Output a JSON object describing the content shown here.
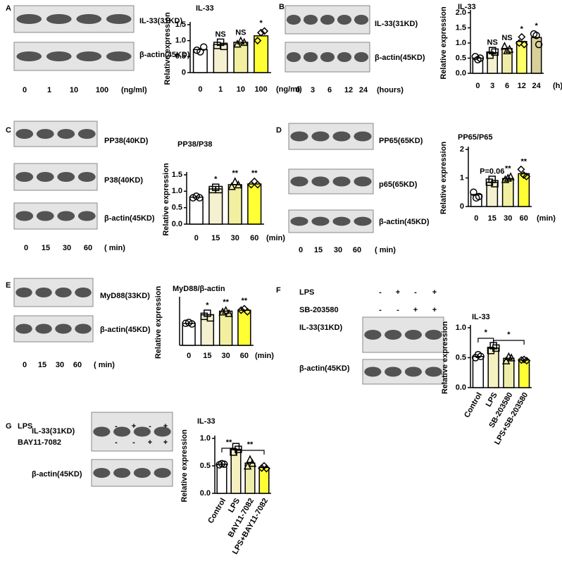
{
  "panels": [
    {
      "label": "A",
      "blots": [
        {
          "label": "IL-33(31KD)"
        },
        {
          "label": "β-actin(45KD)"
        }
      ],
      "lanes": [
        "0",
        "1",
        "10",
        "100"
      ],
      "lane_unit": "(ng/ml)"
    },
    {
      "label": "B",
      "blots": [
        {
          "label": "IL-33(31KD)"
        },
        {
          "label": "β-actin(45KD)"
        }
      ],
      "lanes": [
        "0",
        "3",
        "6",
        "12",
        "24"
      ],
      "lane_unit": "(hours)"
    },
    {
      "label": "C",
      "blots": [
        {
          "label": "PP38(40KD)"
        },
        {
          "label": "P38(40KD)"
        },
        {
          "label": "β-actin(45KD)"
        }
      ],
      "lanes": [
        "0",
        "15",
        "30",
        "60"
      ],
      "lane_unit": "( min)"
    },
    {
      "label": "D",
      "blots": [
        {
          "label": "PP65(65KD)"
        },
        {
          "label": "p65(65KD)"
        },
        {
          "label": "β-actin(45KD)"
        }
      ],
      "lanes": [
        "0",
        "15",
        "30",
        "60"
      ],
      "lane_unit": "( min)"
    },
    {
      "label": "E",
      "blots": [
        {
          "label": "MyD88(33KD)"
        },
        {
          "label": "β-actin(45KD)"
        }
      ],
      "lanes": [
        "0",
        "15",
        "30",
        "60"
      ],
      "lane_unit": "( min)"
    },
    {
      "label": "F",
      "blots": [
        {
          "label": "IL-33(31KD)"
        },
        {
          "label": "β-actin(45KD)"
        }
      ],
      "treatments": [
        {
          "name": "LPS",
          "signs": [
            "-",
            "+",
            "-",
            "+"
          ]
        },
        {
          "name": "SB-203580",
          "signs": [
            "-",
            "-",
            "+",
            "+"
          ]
        }
      ]
    },
    {
      "label": "G",
      "blots": [
        {
          "label": "IL-33(31KD)"
        },
        {
          "label": "β-actin(45KD)"
        }
      ],
      "treatments": [
        {
          "name": "LPS",
          "signs": [
            "-",
            "+",
            "-",
            "+"
          ]
        },
        {
          "name": "BAY11-7082",
          "signs": [
            "-",
            "-",
            "+",
            "+"
          ]
        }
      ]
    }
  ],
  "chart_data": [
    {
      "type": "bar",
      "title": "IL-33",
      "ylabel": "Relative expression",
      "categories": [
        "0",
        "1",
        "10",
        "100"
      ],
      "x_unit": "(ng/ml)",
      "values": [
        0.72,
        0.88,
        0.95,
        1.15
      ],
      "points": [
        [
          0.7,
          0.65,
          0.8
        ],
        [
          0.85,
          0.95,
          0.82
        ],
        [
          0.9,
          1.0,
          0.95
        ],
        [
          1.0,
          1.25,
          1.3
        ]
      ],
      "colors": [
        "#ffffff",
        "#f5f0d0",
        "#f2f0a0",
        "#ffff33"
      ],
      "annotations": [
        null,
        "NS",
        "NS",
        "*"
      ],
      "ylim": [
        0,
        1.5
      ],
      "yticks": [
        0,
        0.5,
        {
          "value": 1,
          "label": "1.0"
        },
        1.5
      ]
    },
    {
      "type": "bar",
      "title": "IL-33",
      "ylabel": "Relative expression",
      "categories": [
        "0",
        "3",
        "6",
        "12",
        "24"
      ],
      "x_unit": "(h)",
      "values": [
        0.5,
        0.68,
        0.82,
        1.05,
        1.18
      ],
      "points": [
        [
          0.55,
          0.45,
          0.5
        ],
        [
          0.6,
          0.75,
          0.7
        ],
        [
          0.9,
          0.75,
          0.8
        ],
        [
          1.0,
          1.2,
          0.95
        ],
        [
          1.3,
          1.25,
          0.95
        ]
      ],
      "colors": [
        "#ffffff",
        "#f5f0d0",
        "#f0eca8",
        "#ffff66",
        "#d9cf9a"
      ],
      "annotations": [
        null,
        "NS",
        "NS",
        "*",
        "*"
      ],
      "ylim": [
        0,
        2
      ],
      "yticks": [
        {
          "value": 0,
          "label": "0.0"
        },
        0.5,
        {
          "value": 1,
          "label": "1.0"
        },
        1.5,
        {
          "value": 2,
          "label": "2.0"
        }
      ]
    },
    {
      "type": "bar",
      "title": "PP38/P38",
      "ylabel": "Relative expression",
      "categories": [
        "0",
        "15",
        "30",
        "60"
      ],
      "x_unit": "(min)",
      "values": [
        0.82,
        1.07,
        1.2,
        1.22
      ],
      "points": [
        [
          0.8,
          0.85,
          0.8
        ],
        [
          1.05,
          1.12,
          1.05
        ],
        [
          1.15,
          1.3,
          1.2
        ],
        [
          1.2,
          1.3,
          1.2
        ]
      ],
      "colors": [
        "#ffffff",
        "#f5f0d0",
        "#f2f0a0",
        "#ffff33"
      ],
      "annotations": [
        null,
        "*",
        "**",
        "**"
      ],
      "ylim": [
        0,
        1.5
      ],
      "yticks": [
        {
          "value": 0,
          "label": "0.0"
        },
        0.5,
        {
          "value": 1,
          "label": "1.0"
        },
        1.5
      ]
    },
    {
      "type": "bar",
      "title": "PP65/P65",
      "ylabel": "Relative expression",
      "categories": [
        "0",
        "15",
        "30",
        "60"
      ],
      "x_unit": "(min)",
      "values": [
        0.42,
        0.85,
        0.98,
        1.15
      ],
      "points": [
        [
          0.5,
          0.3,
          0.35
        ],
        [
          0.85,
          0.95,
          0.8
        ],
        [
          0.95,
          1.0,
          1.05
        ],
        [
          1.3,
          1.1,
          1.05
        ]
      ],
      "colors": [
        "#ffffff",
        "#f5f0d0",
        "#f2f0a0",
        "#ffff33"
      ],
      "annotations": [
        null,
        "P=0.06",
        "**",
        "**"
      ],
      "ylim": [
        0,
        2
      ],
      "yticks": [
        0,
        1,
        2
      ]
    },
    {
      "type": "bar",
      "title": "MyD88/β-actin",
      "ylabel": "Relative expression",
      "categories": [
        "0",
        "15",
        "30",
        "60"
      ],
      "x_unit": "(min)",
      "values": [
        0.72,
        1.0,
        1.12,
        1.15
      ],
      "points": [
        [
          0.72,
          0.75,
          0.7
        ],
        [
          0.95,
          1.05,
          0.9
        ],
        [
          1.1,
          1.15,
          1.05
        ],
        [
          1.15,
          1.2,
          1.1
        ]
      ],
      "colors": [
        "#ffffff",
        "#f5f0d0",
        "#f2f0a0",
        "#ffff33"
      ],
      "annotations": [
        null,
        "*",
        "**",
        "**"
      ],
      "ylim": [
        0,
        1.5
      ]
    },
    {
      "type": "bar",
      "title": "IL-33",
      "ylabel": "Relative expression",
      "categories": [
        "Control",
        "LPS",
        "SB-203580",
        "LPS+SB-203580"
      ],
      "values": [
        0.52,
        0.66,
        0.49,
        0.46
      ],
      "points": [
        [
          0.5,
          0.55,
          0.52
        ],
        [
          0.62,
          0.7,
          0.66
        ],
        [
          0.45,
          0.52,
          0.5
        ],
        [
          0.46,
          0.47,
          0.45
        ]
      ],
      "colors": [
        "#ffffff",
        "#f5f0c0",
        "#eeeeaa",
        "#ffff33"
      ],
      "brackets": [
        {
          "between": [
            "Control",
            "LPS"
          ],
          "label": "*"
        },
        {
          "between": [
            "LPS",
            "LPS+SB-203580"
          ],
          "label": "*"
        }
      ],
      "ylim": [
        0,
        1
      ],
      "yticks": [
        {
          "value": 0,
          "label": "0.0"
        },
        0.5,
        {
          "value": 1,
          "label": "1.0"
        }
      ]
    },
    {
      "type": "bar",
      "title": "IL-33",
      "ylabel": "Relative expression",
      "categories": [
        "Control",
        "LPS",
        "BAY11-7082",
        "LPS+BAY11-7082"
      ],
      "values": [
        0.53,
        0.8,
        0.55,
        0.47
      ],
      "points": [
        [
          0.52,
          0.54,
          0.53
        ],
        [
          0.75,
          0.85,
          0.8
        ],
        [
          0.5,
          0.62,
          0.55
        ],
        [
          0.46,
          0.5,
          0.45
        ]
      ],
      "colors": [
        "#ffffff",
        "#f5f0c0",
        "#eeeeaa",
        "#ffff33"
      ],
      "brackets": [
        {
          "between": [
            "Control",
            "LPS"
          ],
          "label": "**"
        },
        {
          "between": [
            "LPS",
            "LPS+BAY11-7082"
          ],
          "label": "**"
        }
      ],
      "ylim": [
        0,
        1
      ],
      "yticks": [
        {
          "value": 0,
          "label": "0.0"
        },
        0.5,
        {
          "value": 1,
          "label": "1.0"
        }
      ]
    }
  ]
}
